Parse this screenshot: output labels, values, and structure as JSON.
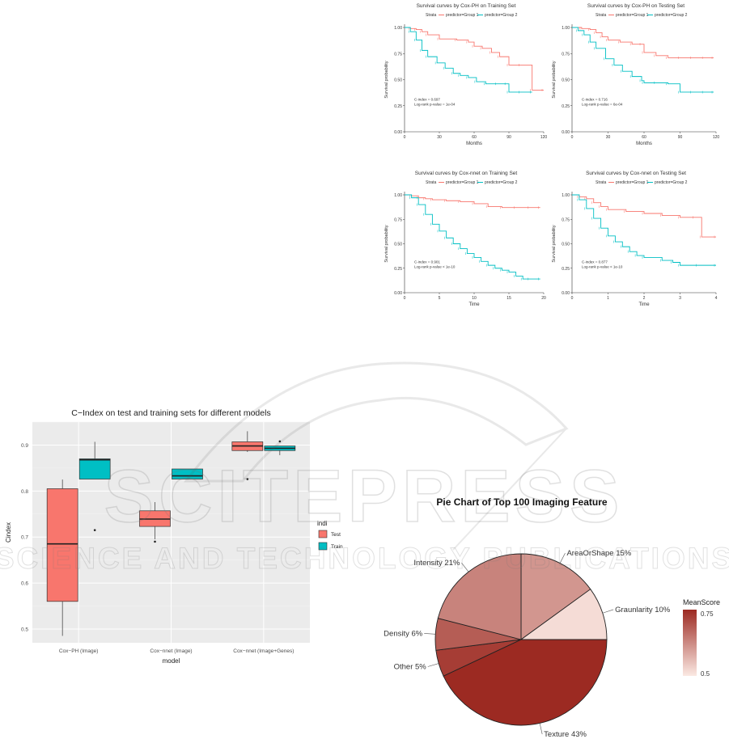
{
  "watermark": {
    "line1": "SCITEPRESS",
    "line2": "SCIENCE AND TECHNOLOGY PUBLICATIONS"
  },
  "chart_data": [
    {
      "type": "line",
      "title": "Survival curves by Cox-PH on Training Set",
      "legend_title": "Strata",
      "legend": [
        "predictor=Group 1",
        "predictor=Group 2"
      ],
      "xlabel": "Months",
      "ylabel": "Survival probability",
      "xticks": [
        0,
        30,
        60,
        90,
        120
      ],
      "yticks": [
        "0.00",
        "0.25",
        "0.50",
        "0.75",
        "1.00"
      ],
      "xlim": [
        0,
        120
      ],
      "ylim": [
        0,
        1
      ],
      "annotation": [
        "C-index = 0.697",
        "Log-rank p-value = 1e-04"
      ],
      "colors": [
        "#f8766d",
        "#00bfc4"
      ],
      "series": [
        {
          "name": "predictor=Group 1",
          "x": [
            0,
            5,
            10,
            15,
            20,
            30,
            45,
            55,
            60,
            67,
            75,
            82,
            90,
            100,
            110,
            120
          ],
          "y": [
            1.0,
            0.99,
            0.98,
            0.96,
            0.93,
            0.89,
            0.88,
            0.86,
            0.82,
            0.8,
            0.76,
            0.72,
            0.64,
            0.64,
            0.4,
            0.4
          ]
        },
        {
          "name": "predictor=Group 2",
          "x": [
            0,
            5,
            10,
            15,
            20,
            28,
            35,
            42,
            48,
            55,
            62,
            70,
            80,
            88,
            90,
            100,
            110
          ],
          "y": [
            1.0,
            0.96,
            0.88,
            0.78,
            0.72,
            0.66,
            0.61,
            0.56,
            0.54,
            0.52,
            0.48,
            0.46,
            0.46,
            0.46,
            0.38,
            0.38,
            0.38
          ]
        }
      ]
    },
    {
      "type": "line",
      "title": "Survival curves by Cox-PH on Testing Set",
      "legend_title": "Strata",
      "legend": [
        "predictor=Group 1",
        "predictor=Group 2"
      ],
      "xlabel": "Months",
      "ylabel": "Survival probability",
      "xticks": [
        0,
        30,
        60,
        90,
        120
      ],
      "yticks": [
        "0.00",
        "0.25",
        "0.50",
        "0.75",
        "1.00"
      ],
      "xlim": [
        0,
        120
      ],
      "ylim": [
        0,
        1
      ],
      "annotation": [
        "C-index = 0.716",
        "Log-rank p-value = 6e-04"
      ],
      "colors": [
        "#f8766d",
        "#00bfc4"
      ],
      "series": [
        {
          "name": "predictor=Group 1",
          "x": [
            0,
            8,
            15,
            20,
            25,
            30,
            40,
            50,
            58,
            60,
            70,
            80,
            90,
            100,
            110,
            118
          ],
          "y": [
            1.0,
            0.99,
            0.98,
            0.95,
            0.91,
            0.88,
            0.86,
            0.84,
            0.84,
            0.76,
            0.73,
            0.71,
            0.71,
            0.71,
            0.71,
            0.71
          ]
        },
        {
          "name": "predictor=Group 2",
          "x": [
            0,
            5,
            10,
            15,
            20,
            28,
            35,
            42,
            50,
            58,
            60,
            70,
            80,
            90,
            100,
            110,
            118
          ],
          "y": [
            1.0,
            0.97,
            0.93,
            0.86,
            0.8,
            0.7,
            0.64,
            0.58,
            0.53,
            0.49,
            0.47,
            0.47,
            0.46,
            0.38,
            0.38,
            0.38,
            0.38
          ]
        }
      ]
    },
    {
      "type": "line",
      "title": "Survival curves by Cox-nnet on Training Set",
      "legend_title": "Strata",
      "legend": [
        "predictor=Group 1",
        "predictor=Group 2"
      ],
      "xlabel": "Time",
      "ylabel": "Survival probability",
      "xticks": [
        0,
        5,
        10,
        15,
        20
      ],
      "yticks": [
        "0.00",
        "0.25",
        "0.50",
        "0.75",
        "1.00"
      ],
      "xlim": [
        0,
        20
      ],
      "ylim": [
        0,
        1
      ],
      "annotation": [
        "C-index = 0.901",
        "Log-rank p-value < 1e-10"
      ],
      "colors": [
        "#f8766d",
        "#00bfc4"
      ],
      "series": [
        {
          "name": "predictor=Group 1",
          "x": [
            0,
            1,
            2,
            3,
            4,
            6,
            8,
            10,
            12,
            14,
            16,
            18,
            19.5
          ],
          "y": [
            1.0,
            0.99,
            0.97,
            0.96,
            0.95,
            0.94,
            0.93,
            0.91,
            0.88,
            0.87,
            0.87,
            0.87,
            0.87
          ]
        },
        {
          "name": "predictor=Group 2",
          "x": [
            0,
            1,
            2,
            3,
            4,
            5,
            6,
            7,
            8,
            9,
            10,
            11,
            12,
            13,
            14,
            15,
            16,
            17,
            18,
            19.5
          ],
          "y": [
            1.0,
            0.97,
            0.9,
            0.8,
            0.7,
            0.63,
            0.56,
            0.5,
            0.45,
            0.4,
            0.36,
            0.32,
            0.28,
            0.25,
            0.23,
            0.21,
            0.17,
            0.14,
            0.14,
            0.14
          ]
        }
      ]
    },
    {
      "type": "line",
      "title": "Survival curves by Cox-nnet on Testing Set",
      "legend_title": "Strata",
      "legend": [
        "predictor=Group 1",
        "predictor=Group 2"
      ],
      "xlabel": "Time",
      "ylabel": "Survival probability",
      "xticks": [
        0,
        1,
        2,
        3,
        4
      ],
      "yticks": [
        "0.00",
        "0.25",
        "0.50",
        "0.75",
        "1.00"
      ],
      "xlim": [
        0,
        4
      ],
      "ylim": [
        0,
        1
      ],
      "annotation": [
        "C-index = 0.877",
        "Log-rank p-value < 1e-10"
      ],
      "colors": [
        "#f8766d",
        "#00bfc4"
      ],
      "series": [
        {
          "name": "predictor=Group 1",
          "x": [
            0,
            0.2,
            0.4,
            0.6,
            0.8,
            1.0,
            1.5,
            2.0,
            2.5,
            3.0,
            3.4,
            3.6,
            4.0
          ],
          "y": [
            1.0,
            0.98,
            0.96,
            0.92,
            0.88,
            0.85,
            0.83,
            0.81,
            0.79,
            0.77,
            0.77,
            0.57,
            0.57
          ]
        },
        {
          "name": "predictor=Group 2",
          "x": [
            0,
            0.2,
            0.4,
            0.6,
            0.8,
            1.0,
            1.2,
            1.4,
            1.6,
            1.8,
            2.0,
            2.5,
            2.8,
            3.0,
            3.5,
            4.0
          ],
          "y": [
            1.0,
            0.95,
            0.86,
            0.76,
            0.66,
            0.58,
            0.52,
            0.47,
            0.42,
            0.38,
            0.36,
            0.33,
            0.31,
            0.28,
            0.28,
            0.28
          ]
        }
      ]
    },
    {
      "type": "box",
      "title": "C−Index on test and training sets for different models",
      "xlabel": "model",
      "ylabel": "Cindex",
      "legend_title": "indi",
      "legend": [
        "Test",
        "Train"
      ],
      "colors": [
        "#f8766d",
        "#00bfc4"
      ],
      "categories": [
        "Cox−PH (Image)",
        "Cox−nnet (Image)",
        "Cox−nnet (Image+Genes)"
      ],
      "ylim": [
        0.47,
        0.95
      ],
      "yticks": [
        "0.5",
        "0.6",
        "0.7",
        "0.8",
        "0.9"
      ],
      "series": [
        {
          "name": "Test",
          "boxes": [
            {
              "min": 0.485,
              "q1": 0.56,
              "median": 0.685,
              "q3": 0.805,
              "max": 0.825,
              "outliers": []
            },
            {
              "min": 0.695,
              "q1": 0.723,
              "median": 0.739,
              "q3": 0.757,
              "max": 0.776,
              "outliers": [
                0.69
              ]
            },
            {
              "min": 0.885,
              "q1": 0.888,
              "median": 0.898,
              "q3": 0.907,
              "max": 0.93,
              "outliers": [
                0.826
              ]
            }
          ]
        },
        {
          "name": "Train",
          "boxes": [
            {
              "min": 0.826,
              "q1": 0.826,
              "median": 0.868,
              "q3": 0.87,
              "max": 0.907,
              "outliers": [
                0.715
              ]
            },
            {
              "min": 0.826,
              "q1": 0.826,
              "median": 0.833,
              "q3": 0.848,
              "max": 0.848,
              "outliers": []
            },
            {
              "min": 0.878,
              "q1": 0.888,
              "median": 0.893,
              "q3": 0.898,
              "max": 0.898,
              "outliers": [
                0.908
              ]
            }
          ]
        }
      ]
    },
    {
      "type": "pie",
      "title": "Pie Chart of Top 100 Imaging Feature",
      "slices": [
        {
          "label": "AreaOrShape 15%",
          "value": 15,
          "mean_score": 0.63
        },
        {
          "label": "Graunlarity 10%",
          "value": 10,
          "mean_score": 0.52
        },
        {
          "label": "Texture 43%",
          "value": 43,
          "mean_score": 0.8
        },
        {
          "label": "Other 5%",
          "value": 5,
          "mean_score": 0.77
        },
        {
          "label": "Density 6%",
          "value": 6,
          "mean_score": 0.72
        },
        {
          "label": "Intensity 21%",
          "value": 21,
          "mean_score": 0.66
        }
      ],
      "legend_title": "MeanScore",
      "legend_ticks": [
        "0.75",
        "0.5"
      ],
      "color_low": "#fbe9e3",
      "color_high": "#9c2a22"
    }
  ]
}
